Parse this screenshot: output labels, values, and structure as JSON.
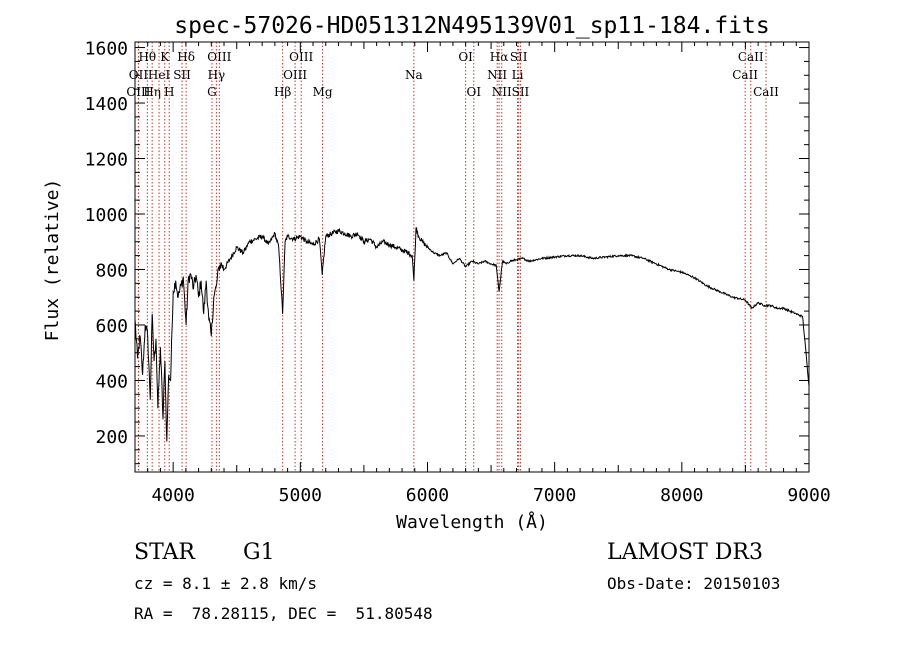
{
  "chart_data": {
    "type": "line",
    "title": "spec-57026-HD051312N495139V01_sp11-184.fits",
    "xlabel": "Wavelength (Å)",
    "ylabel": "Flux (relative)",
    "xlim": [
      3700,
      9000
    ],
    "ylim": [
      70,
      1620
    ],
    "x_ticks": [
      4000,
      5000,
      6000,
      7000,
      8000,
      9000
    ],
    "y_ticks": [
      200,
      400,
      600,
      800,
      1000,
      1200,
      1400,
      1600
    ],
    "grid": false,
    "line_color": "#000000",
    "marker_color": "#c0392b",
    "series": [
      {
        "name": "flux",
        "x": [
          3700,
          3720,
          3740,
          3760,
          3780,
          3800,
          3820,
          3835,
          3850,
          3865,
          3880,
          3900,
          3920,
          3935,
          3950,
          3965,
          3980,
          4000,
          4020,
          4040,
          4060,
          4080,
          4102,
          4120,
          4140,
          4160,
          4180,
          4200,
          4220,
          4240,
          4260,
          4280,
          4300,
          4320,
          4340,
          4360,
          4380,
          4400,
          4450,
          4500,
          4550,
          4600,
          4650,
          4700,
          4750,
          4800,
          4830,
          4861,
          4880,
          4900,
          4950,
          5000,
          5050,
          5100,
          5150,
          5172,
          5200,
          5250,
          5300,
          5350,
          5400,
          5450,
          5500,
          5550,
          5600,
          5650,
          5700,
          5750,
          5800,
          5850,
          5880,
          5893,
          5910,
          5930,
          5960,
          6000,
          6050,
          6100,
          6150,
          6200,
          6250,
          6300,
          6350,
          6400,
          6450,
          6500,
          6540,
          6563,
          6590,
          6620,
          6650,
          6700,
          6750,
          6800,
          6900,
          7000,
          7100,
          7200,
          7300,
          7400,
          7500,
          7600,
          7700,
          7800,
          7900,
          8000,
          8100,
          8200,
          8300,
          8400,
          8500,
          8550,
          8600,
          8650,
          8700,
          8750,
          8800,
          8850,
          8900,
          8950,
          9000
        ],
        "y": [
          620,
          480,
          560,
          420,
          600,
          560,
          330,
          640,
          470,
          550,
          300,
          520,
          260,
          470,
          180,
          420,
          400,
          720,
          760,
          700,
          740,
          770,
          600,
          770,
          780,
          730,
          780,
          700,
          760,
          640,
          760,
          620,
          560,
          700,
          740,
          810,
          820,
          800,
          840,
          880,
          860,
          900,
          910,
          920,
          890,
          930,
          880,
          640,
          900,
          920,
          910,
          920,
          900,
          890,
          910,
          780,
          920,
          930,
          940,
          930,
          920,
          930,
          900,
          910,
          880,
          900,
          890,
          880,
          870,
          860,
          850,
          760,
          950,
          920,
          900,
          880,
          860,
          850,
          860,
          820,
          840,
          810,
          830,
          820,
          830,
          820,
          815,
          720,
          830,
          820,
          830,
          835,
          840,
          830,
          840,
          845,
          850,
          850,
          840,
          845,
          850,
          850,
          840,
          820,
          800,
          790,
          770,
          740,
          720,
          700,
          690,
          660,
          680,
          670,
          670,
          660,
          660,
          650,
          640,
          630,
          380
        ]
      }
    ],
    "line_markers": [
      {
        "label": "Hθ",
        "x": 3797,
        "row": 1
      },
      {
        "label": "OII",
        "x": 3727,
        "row": 2
      },
      {
        "label": "OIII",
        "x": 3727,
        "row": 3
      },
      {
        "label": "K",
        "x": 3934,
        "row": 1
      },
      {
        "label": "HeI",
        "x": 3889,
        "row": 2
      },
      {
        "label": "Hη",
        "x": 3835,
        "row": 3
      },
      {
        "label": "H",
        "x": 3969,
        "row": 3
      },
      {
        "label": "SII",
        "x": 4070,
        "row": 2
      },
      {
        "label": "Hδ",
        "x": 4102,
        "row": 1
      },
      {
        "label": "OIII",
        "x": 4363,
        "row": 1
      },
      {
        "label": "Hγ",
        "x": 4340,
        "row": 2
      },
      {
        "label": "G",
        "x": 4305,
        "row": 3
      },
      {
        "label": "Hβ",
        "x": 4861,
        "row": 3
      },
      {
        "label": "OIII",
        "x": 5007,
        "row": 1
      },
      {
        "label": "OIII",
        "x": 4959,
        "row": 2
      },
      {
        "label": "Mg",
        "x": 5175,
        "row": 3
      },
      {
        "label": "Na",
        "x": 5893,
        "row": 2
      },
      {
        "label": "OI",
        "x": 6300,
        "row": 1
      },
      {
        "label": "OI",
        "x": 6364,
        "row": 3
      },
      {
        "label": "Hα",
        "x": 6563,
        "row": 1
      },
      {
        "label": "NII",
        "x": 6548,
        "row": 2
      },
      {
        "label": "NII",
        "x": 6584,
        "row": 3
      },
      {
        "label": "SII",
        "x": 6717,
        "row": 1
      },
      {
        "label": "Li",
        "x": 6708,
        "row": 2
      },
      {
        "label": "SII",
        "x": 6731,
        "row": 3
      },
      {
        "label": "CaII",
        "x": 8542,
        "row": 1
      },
      {
        "label": "CaII",
        "x": 8498,
        "row": 2
      },
      {
        "label": "CaII",
        "x": 8662,
        "row": 3
      }
    ]
  },
  "info": {
    "object_type": "STAR",
    "subclass": "G1",
    "survey": "LAMOST DR3",
    "cz": "cz = 8.1 ± 2.8 km/s",
    "obs_date": "Obs-Date: 20150103",
    "coords": "RA =  78.28115, DEC =  51.80548"
  }
}
